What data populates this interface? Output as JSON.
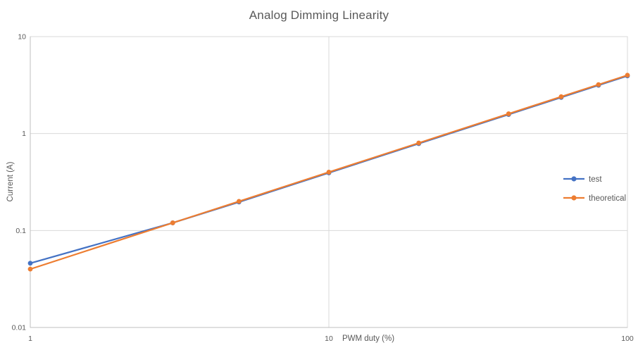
{
  "chart_data": {
    "type": "line",
    "title": "Analog Dimming Linearity",
    "xlabel": "PWM duty (%)",
    "ylabel": "Current (A)",
    "x_scale": "log",
    "y_scale": "log",
    "xlim": [
      1,
      100
    ],
    "ylim": [
      0.01,
      10
    ],
    "x_ticks": [
      1,
      10,
      100
    ],
    "y_ticks": [
      0.01,
      0.1,
      1,
      10
    ],
    "grid": true,
    "legend_position": "center-right",
    "x": [
      1,
      3,
      5,
      10,
      20,
      40,
      60,
      80,
      100
    ],
    "series": [
      {
        "name": "test",
        "color": "#4472C4",
        "marker": "circle",
        "values": [
          0.046,
          0.12,
          0.2,
          0.4,
          0.8,
          1.6,
          2.4,
          3.2,
          4.0
        ]
      },
      {
        "name": "theoretical",
        "color": "#ED7D31",
        "marker": "circle",
        "values": [
          0.04,
          0.12,
          0.2,
          0.4,
          0.8,
          1.6,
          2.4,
          3.2,
          4.0
        ]
      }
    ],
    "colors": {
      "grid": "#D9D9D9",
      "axis": "#BFBFBF",
      "text": "#595959",
      "background": "#FFFFFF"
    }
  }
}
